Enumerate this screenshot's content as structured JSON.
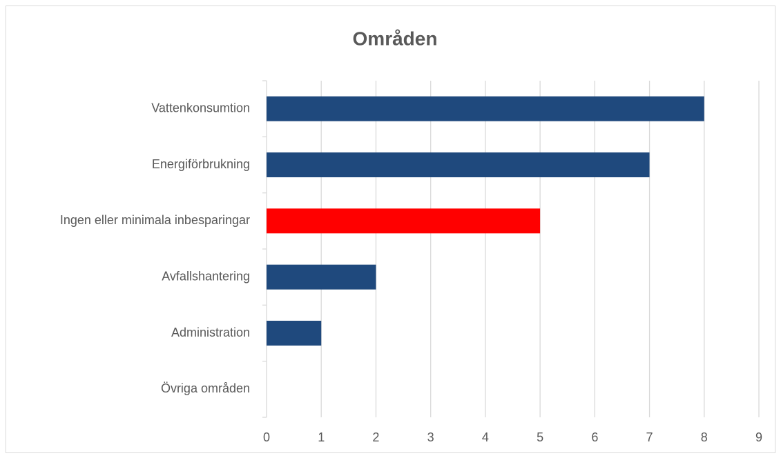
{
  "chart_data": {
    "type": "bar",
    "orientation": "horizontal",
    "title": "Områden",
    "categories": [
      "Vattenkonsumtion",
      "Energiförbrukning",
      "Ingen eller minimala inbesparingar",
      "Avfallshantering",
      "Administration",
      "Övriga områden"
    ],
    "values": [
      8,
      7,
      5,
      2,
      1,
      0
    ],
    "colors": [
      "#1f497d",
      "#1f497d",
      "#ff0000",
      "#1f497d",
      "#1f497d",
      "#1f497d"
    ],
    "xlim": [
      0,
      9
    ],
    "xticks": [
      0,
      1,
      2,
      3,
      4,
      5,
      6,
      7,
      8,
      9
    ],
    "grid": true
  }
}
